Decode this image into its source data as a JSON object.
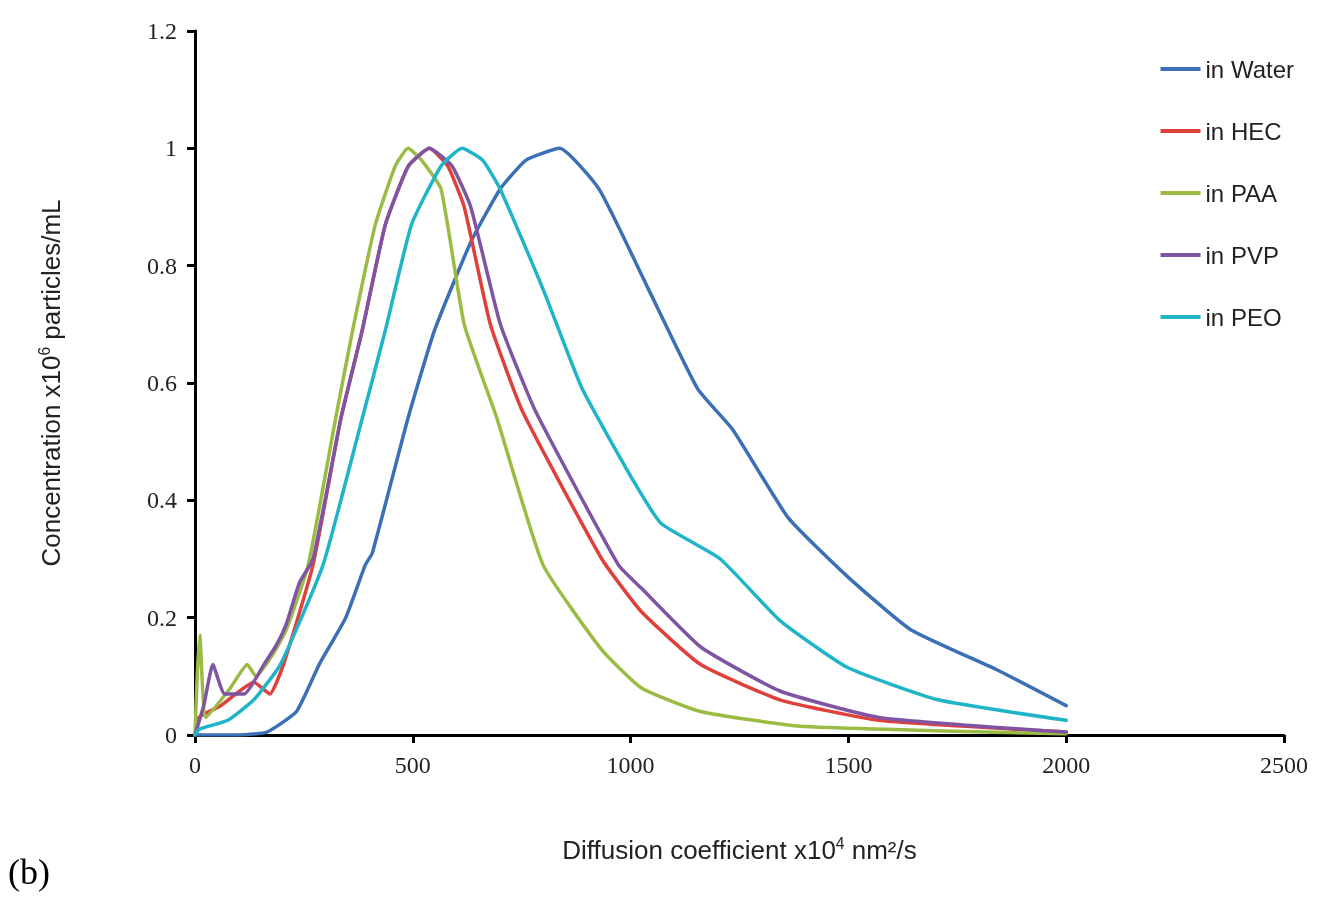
{
  "chart_data": {
    "type": "line",
    "xlabel": "Diffusion coefficient x10$^{4}$ nm²/s",
    "ylabel": "Concentration x10$^{6}$ particles/mL",
    "annotations": [
      "(b)"
    ],
    "xlim": [
      0,
      2500
    ],
    "xticks": [
      0,
      500,
      1000,
      1500,
      2000,
      2500
    ],
    "ylim": [
      0,
      1.2
    ],
    "yticks": [
      0,
      0.2,
      0.4,
      0.6,
      0.8,
      1,
      1.2
    ],
    "grid": false,
    "legend": "top right",
    "marker": "none",
    "line_style": "solid",
    "series": [
      {
        "name": "in Water",
        "color": "#3b6fb6",
        "x": [
          0,
          100,
          165,
          233,
          285,
          346,
          391,
          407,
          489,
          550,
          633,
          700,
          760,
          837,
          928,
          1041,
          1154,
          1235,
          1362,
          1498,
          1642,
          1844,
          2000
        ],
        "values": [
          0,
          0,
          0.005,
          0.04,
          0.12,
          0.2,
          0.29,
          0.31,
          0.54,
          0.69,
          0.84,
          0.93,
          0.98,
          1,
          0.93,
          0.76,
          0.59,
          0.52,
          0.37,
          0.27,
          0.18,
          0.11,
          0.05
        ]
      },
      {
        "name": "in HEC",
        "color": "#e0403a",
        "x": [
          0,
          9,
          59,
          135,
          172,
          203,
          271,
          335,
          384,
          437,
          490,
          538,
          580,
          618,
          678,
          753,
          934,
          1025,
          1161,
          1343,
          1570,
          2000
        ],
        "values": [
          0,
          0.03,
          0.05,
          0.09,
          0.07,
          0.12,
          0.29,
          0.54,
          0.69,
          0.87,
          0.97,
          1,
          0.97,
          0.9,
          0.7,
          0.55,
          0.3,
          0.21,
          0.12,
          0.06,
          0.025,
          0.005
        ]
      },
      {
        "name": "in PAA",
        "color": "#9bbb45",
        "x": [
          0,
          5,
          11,
          25,
          81,
          120,
          140,
          181,
          210,
          260,
          323,
          362,
          414,
          460,
          489,
          520,
          565,
          618,
          693,
          799,
          934,
          1025,
          1161,
          1389,
          2000
        ],
        "values": [
          0,
          0.1,
          0.17,
          0.03,
          0.08,
          0.12,
          0.1,
          0.14,
          0.18,
          0.29,
          0.54,
          0.69,
          0.87,
          0.97,
          1,
          0.98,
          0.93,
          0.7,
          0.54,
          0.29,
          0.145,
          0.08,
          0.04,
          0.015,
          0.002
        ]
      },
      {
        "name": "in PVP",
        "color": "#7f55a3",
        "x": [
          0,
          20,
          41,
          68,
          113,
          158,
          188,
          210,
          240,
          271,
          335,
          384,
          437,
          490,
          538,
          590,
          633,
          701,
          783,
          972,
          1025,
          1161,
          1343,
          1570,
          2000
        ],
        "values": [
          0,
          0.05,
          0.12,
          0.07,
          0.07,
          0.12,
          0.155,
          0.19,
          0.26,
          0.3,
          0.54,
          0.69,
          0.87,
          0.97,
          1,
          0.97,
          0.9,
          0.7,
          0.55,
          0.29,
          0.25,
          0.15,
          0.075,
          0.03,
          0.005
        ]
      },
      {
        "name": "in PEO",
        "color": "#1fb4c8",
        "x": [
          0,
          10,
          75,
          135,
          196,
          294,
          384,
          437,
          497,
          565,
          613,
          660,
          701,
          799,
          889,
          1009,
          1071,
          1206,
          1343,
          1498,
          1706,
          2000
        ],
        "values": [
          0,
          0.01,
          0.025,
          0.06,
          0.12,
          0.29,
          0.54,
          0.69,
          0.87,
          0.97,
          1,
          0.98,
          0.93,
          0.76,
          0.59,
          0.43,
          0.36,
          0.3,
          0.195,
          0.115,
          0.06,
          0.025
        ]
      }
    ]
  }
}
